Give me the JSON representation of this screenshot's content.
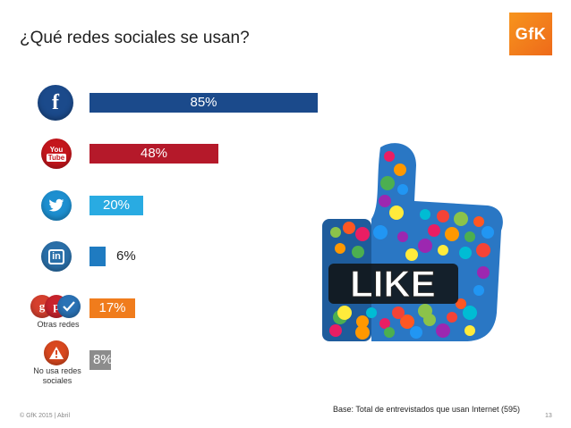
{
  "title": "¿Qué redes sociales se usan?",
  "logo_text": "GfK",
  "chart_data": {
    "type": "bar",
    "orientation": "horizontal",
    "categories": [
      "Facebook",
      "YouTube",
      "Twitter",
      "LinkedIn",
      "Otras redes",
      "No usa redes sociales"
    ],
    "values": [
      85,
      48,
      20,
      6,
      17,
      8
    ],
    "value_labels": [
      "85%",
      "48%",
      "20%",
      "6%",
      "17%",
      "8%"
    ],
    "colors": [
      "#1b4a8b",
      "#b5192a",
      "#29abe2",
      "#1f7bc1",
      "#f07c1c",
      "#8c8c8c"
    ],
    "xlim": [
      0,
      100
    ]
  },
  "category_labels": {
    "otras": "Otras redes",
    "no_usa_line1": "No usa redes",
    "no_usa_line2": "sociales"
  },
  "icons": {
    "facebook": "f",
    "youtube_top": "You",
    "youtube_bottom": "Tube",
    "linkedin": "in",
    "gplus": "g",
    "pinterest": "p",
    "warning": "!"
  },
  "like_text": "LIKE",
  "base_note": "Base: Total de entrevistados que usan Internet (595)",
  "footer": "© GfK 2015 | Abril",
  "page_number": "13"
}
